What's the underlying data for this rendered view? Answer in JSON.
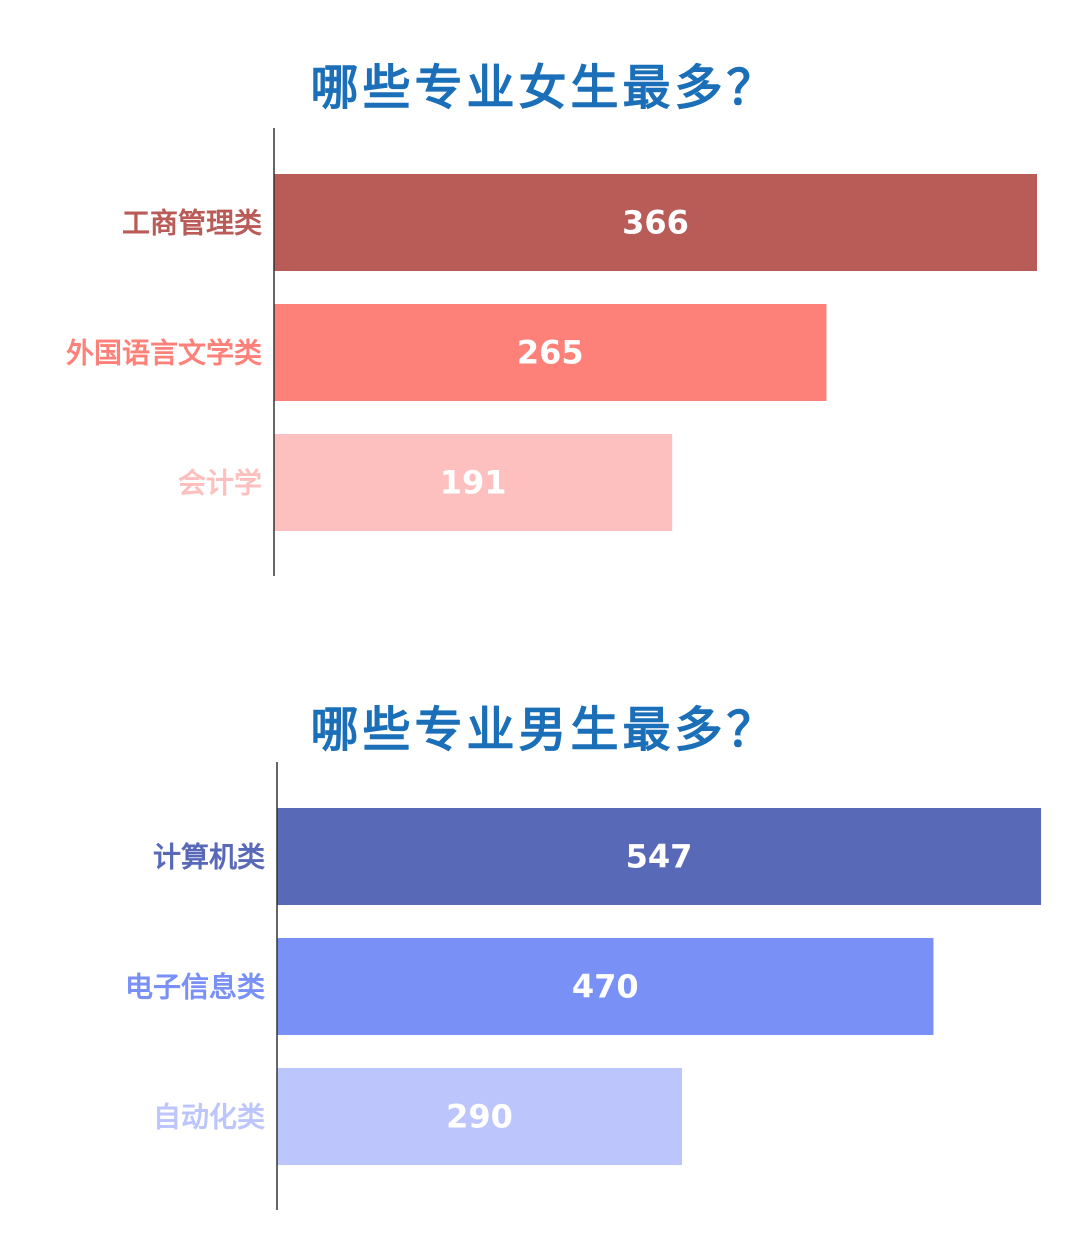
{
  "chart_data": [
    {
      "type": "bar",
      "orientation": "horizontal",
      "title": "哪些专业女生最多？",
      "categories": [
        "工商管理类",
        "外国语言文学类",
        "会计学"
      ],
      "values": [
        366,
        265,
        191
      ],
      "colors": [
        "#b95c58",
        "#fe8179",
        "#fec0be"
      ],
      "xlim": [
        0,
        366
      ],
      "grid": false,
      "legend": "none"
    },
    {
      "type": "bar",
      "orientation": "horizontal",
      "title": "哪些专业男生最多？",
      "categories": [
        "计算机类",
        "电子信息类",
        "自动化类"
      ],
      "values": [
        547,
        470,
        290
      ],
      "colors": [
        "#5869b8",
        "#7990f7",
        "#bdc6fc"
      ],
      "xlim": [
        0,
        547
      ],
      "grid": false,
      "legend": "none"
    }
  ]
}
